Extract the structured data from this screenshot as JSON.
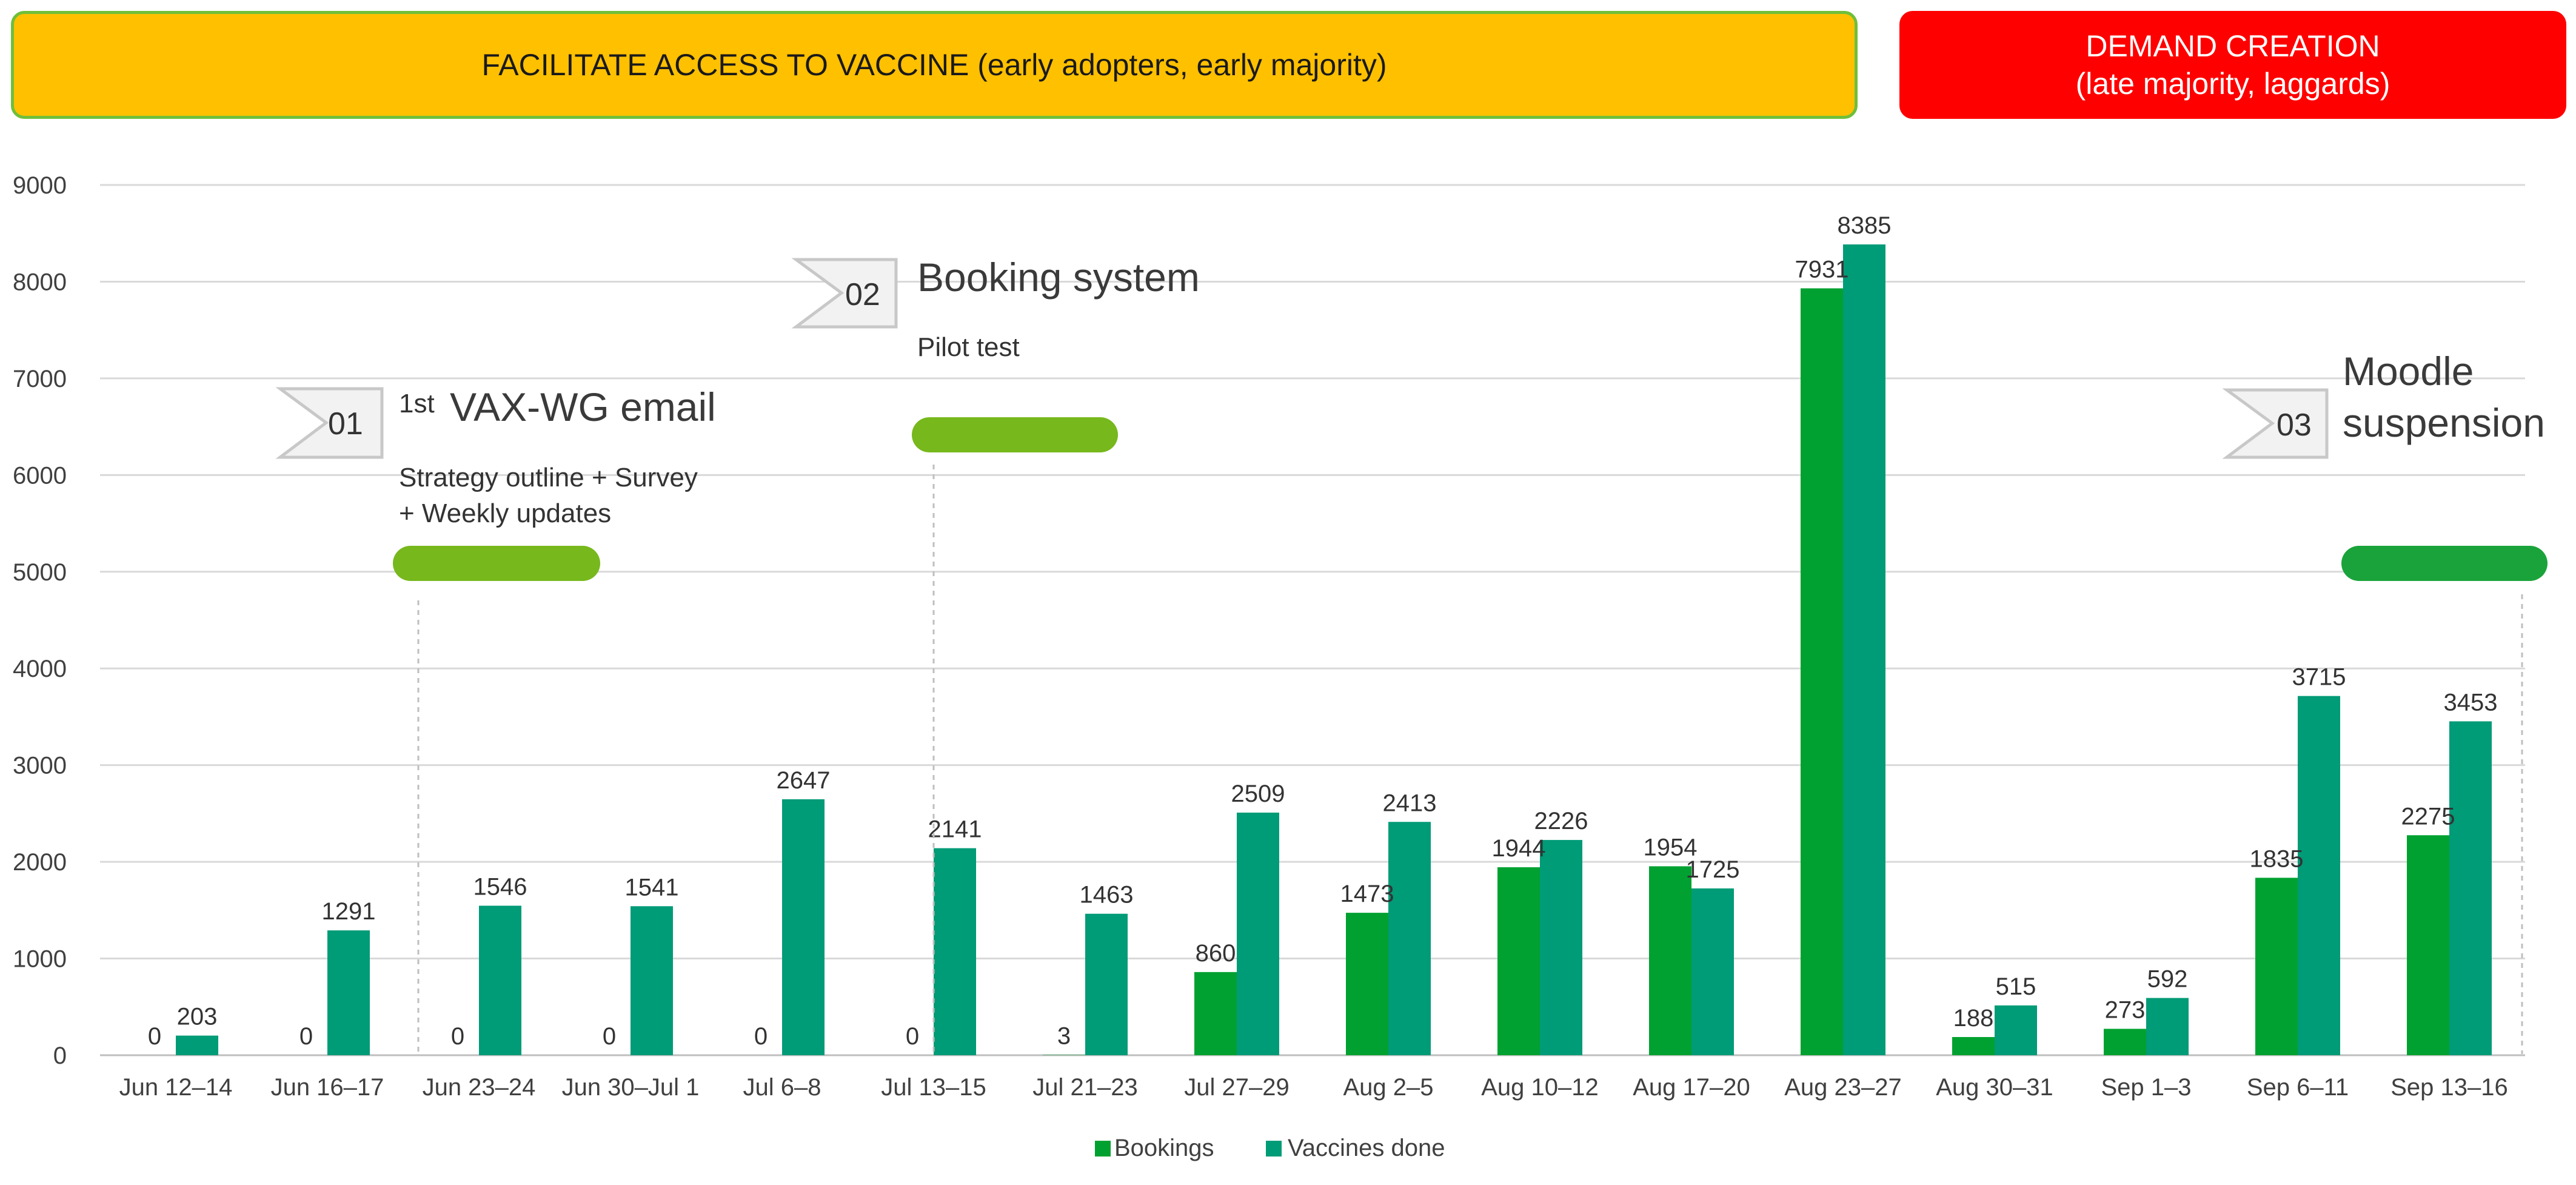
{
  "banners": {
    "left": "FACILITATE ACCESS TO VACCINE (early adopters, early majority)",
    "right_line1": "DEMAND CREATION",
    "right_line2": "(late majority, laggards)"
  },
  "colors": {
    "bookings": "#00a130",
    "vaccines": "#009b77",
    "milestone_light": "#77b81c",
    "milestone_dark": "#1aa33a",
    "banner_left": "#ffc000",
    "banner_right": "#ff0000",
    "grid": "#d9d9d9"
  },
  "milestones": [
    {
      "number": "01",
      "title_sup": "1st",
      "title": "VAX-WG email",
      "sub1": "Strategy outline + Survey",
      "sub2": "+ Weekly updates",
      "category_index": 2
    },
    {
      "number": "02",
      "title": "Booking system",
      "sub1": "Pilot test",
      "category_index": 5
    },
    {
      "number": "03",
      "title1": "Moodle",
      "title2": "suspension",
      "category_index": 15
    }
  ],
  "chart_data": {
    "type": "bar",
    "categories": [
      "Jun 12–14",
      "Jun 16–17",
      "Jun 23–24",
      "Jun 30–Jul 1",
      "Jul 6–8",
      "Jul 13–15",
      "Jul 21–23",
      "Jul 27–29",
      "Aug 2–5",
      "Aug 10–12",
      "Aug 17–20",
      "Aug 23–27",
      "Aug 30–31",
      "Sep 1–3",
      "Sep 6–11",
      "Sep 13–16"
    ],
    "series": [
      {
        "name": "Bookings",
        "values": [
          0,
          0,
          0,
          0,
          0,
          0,
          3,
          860,
          1473,
          1944,
          1954,
          7931,
          188,
          273,
          1835,
          2275
        ]
      },
      {
        "name": "Vaccines done",
        "values": [
          203,
          1291,
          1546,
          1541,
          2647,
          2141,
          1463,
          2509,
          2413,
          2226,
          1725,
          8385,
          515,
          592,
          3715,
          3453
        ]
      }
    ],
    "ylim": [
      0,
      9000
    ],
    "yticks": [
      0,
      1000,
      2000,
      3000,
      4000,
      5000,
      6000,
      7000,
      8000,
      9000
    ],
    "legend": "bottom-center",
    "grid": true,
    "title": "",
    "xlabel": "",
    "ylabel": ""
  }
}
